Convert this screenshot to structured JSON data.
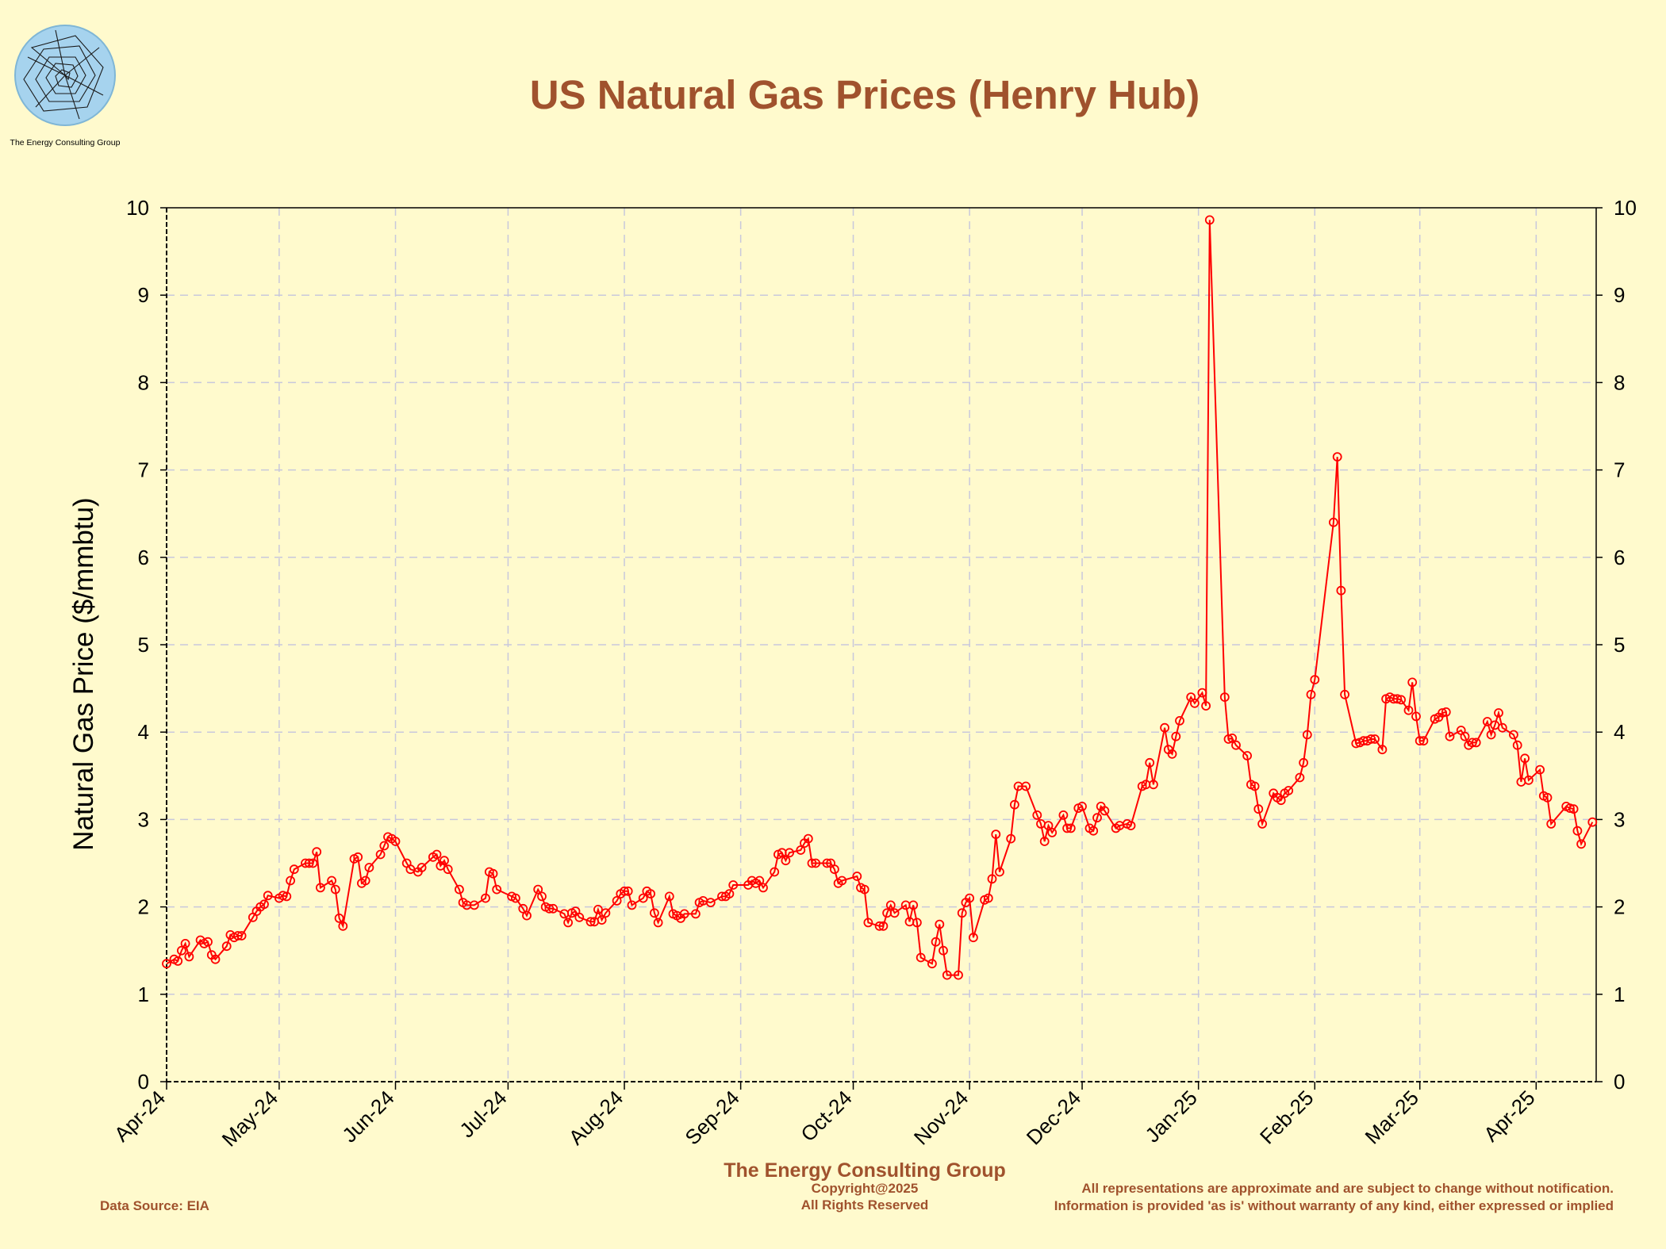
{
  "logo": {
    "text": "The Energy Consulting Group"
  },
  "footer": {
    "company": "The Energy Consulting Group",
    "copyright": "Copyright@2025",
    "rights": "All Rights Reserved",
    "source": "Data Source: EIA",
    "disclaimer_1": "All representations are approximate and are subject to change without notification.",
    "disclaimer_2": "Information is provided 'as is' without warranty of any kind, either expressed or implied"
  },
  "colors": {
    "background": "#fffacd",
    "accent": "#a0522d",
    "series": "#ff0000",
    "grid": "#c8c8dc"
  },
  "chart_data": {
    "type": "line",
    "title": "US Natural Gas Prices (Henry Hub)",
    "xlabel": "",
    "ylabel": "Natural Gas Price ($/mmbtu)",
    "ylim": [
      0,
      10
    ],
    "yticks": [
      0,
      1,
      2,
      3,
      4,
      5,
      6,
      7,
      8,
      9,
      10
    ],
    "xlim": [
      "2024-04-01",
      "2025-04-17"
    ],
    "xticks": [
      {
        "date": "2024-04-01",
        "label": "Apr-24"
      },
      {
        "date": "2024-05-01",
        "label": "May-24"
      },
      {
        "date": "2024-06-01",
        "label": "Jun-24"
      },
      {
        "date": "2024-07-01",
        "label": "Jul-24"
      },
      {
        "date": "2024-08-01",
        "label": "Aug-24"
      },
      {
        "date": "2024-09-01",
        "label": "Sep-24"
      },
      {
        "date": "2024-10-01",
        "label": "Oct-24"
      },
      {
        "date": "2024-11-01",
        "label": "Nov-24"
      },
      {
        "date": "2024-12-01",
        "label": "Dec-24"
      },
      {
        "date": "2025-01-01",
        "label": "Jan-25"
      },
      {
        "date": "2025-02-01",
        "label": "Feb-25"
      },
      {
        "date": "2025-03-01",
        "label": "Mar-25"
      },
      {
        "date": "2025-04-01",
        "label": "Apr-25"
      }
    ],
    "grid": true,
    "series": [
      {
        "marker": "circle",
        "points": [
          [
            "2024-04-01",
            1.35
          ],
          [
            "2024-04-03",
            1.4
          ],
          [
            "2024-04-04",
            1.38
          ],
          [
            "2024-04-05",
            1.5
          ],
          [
            "2024-04-06",
            1.58
          ],
          [
            "2024-04-07",
            1.43
          ],
          [
            "2024-04-10",
            1.62
          ],
          [
            "2024-04-11",
            1.58
          ],
          [
            "2024-04-12",
            1.6
          ],
          [
            "2024-04-13",
            1.45
          ],
          [
            "2024-04-14",
            1.4
          ],
          [
            "2024-04-17",
            1.55
          ],
          [
            "2024-04-18",
            1.68
          ],
          [
            "2024-04-19",
            1.65
          ],
          [
            "2024-04-20",
            1.67
          ],
          [
            "2024-04-21",
            1.67
          ],
          [
            "2024-04-24",
            1.88
          ],
          [
            "2024-04-25",
            1.95
          ],
          [
            "2024-04-26",
            2.0
          ],
          [
            "2024-04-27",
            2.03
          ],
          [
            "2024-04-28",
            2.13
          ],
          [
            "2024-05-01",
            2.1
          ],
          [
            "2024-05-02",
            2.13
          ],
          [
            "2024-05-03",
            2.12
          ],
          [
            "2024-05-04",
            2.3
          ],
          [
            "2024-05-05",
            2.43
          ],
          [
            "2024-05-08",
            2.5
          ],
          [
            "2024-05-09",
            2.5
          ],
          [
            "2024-05-10",
            2.5
          ],
          [
            "2024-05-11",
            2.63
          ],
          [
            "2024-05-12",
            2.22
          ],
          [
            "2024-05-15",
            2.3
          ],
          [
            "2024-05-16",
            2.2
          ],
          [
            "2024-05-17",
            1.87
          ],
          [
            "2024-05-18",
            1.78
          ],
          [
            "2024-05-21",
            2.55
          ],
          [
            "2024-05-22",
            2.57
          ],
          [
            "2024-05-23",
            2.27
          ],
          [
            "2024-05-24",
            2.3
          ],
          [
            "2024-05-25",
            2.45
          ],
          [
            "2024-05-28",
            2.6
          ],
          [
            "2024-05-29",
            2.7
          ],
          [
            "2024-05-30",
            2.8
          ],
          [
            "2024-05-31",
            2.78
          ],
          [
            "2024-06-01",
            2.75
          ],
          [
            "2024-06-04",
            2.5
          ],
          [
            "2024-06-05",
            2.43
          ],
          [
            "2024-06-07",
            2.4
          ],
          [
            "2024-06-08",
            2.45
          ],
          [
            "2024-06-11",
            2.57
          ],
          [
            "2024-06-12",
            2.6
          ],
          [
            "2024-06-13",
            2.47
          ],
          [
            "2024-06-14",
            2.53
          ],
          [
            "2024-06-15",
            2.43
          ],
          [
            "2024-06-18",
            2.2
          ],
          [
            "2024-06-19",
            2.05
          ],
          [
            "2024-06-20",
            2.02
          ],
          [
            "2024-06-22",
            2.02
          ],
          [
            "2024-06-25",
            2.1
          ],
          [
            "2024-06-26",
            2.4
          ],
          [
            "2024-06-27",
            2.38
          ],
          [
            "2024-06-28",
            2.2
          ],
          [
            "2024-07-02",
            2.12
          ],
          [
            "2024-07-03",
            2.1
          ],
          [
            "2024-07-05",
            1.98
          ],
          [
            "2024-07-06",
            1.9
          ],
          [
            "2024-07-09",
            2.2
          ],
          [
            "2024-07-10",
            2.12
          ],
          [
            "2024-07-11",
            2.0
          ],
          [
            "2024-07-12",
            1.98
          ],
          [
            "2024-07-13",
            1.98
          ],
          [
            "2024-07-16",
            1.92
          ],
          [
            "2024-07-17",
            1.82
          ],
          [
            "2024-07-18",
            1.93
          ],
          [
            "2024-07-19",
            1.95
          ],
          [
            "2024-07-20",
            1.88
          ],
          [
            "2024-07-23",
            1.83
          ],
          [
            "2024-07-24",
            1.83
          ],
          [
            "2024-07-25",
            1.97
          ],
          [
            "2024-07-26",
            1.85
          ],
          [
            "2024-07-27",
            1.93
          ],
          [
            "2024-07-30",
            2.07
          ],
          [
            "2024-07-31",
            2.15
          ],
          [
            "2024-08-01",
            2.18
          ],
          [
            "2024-08-02",
            2.18
          ],
          [
            "2024-08-03",
            2.02
          ],
          [
            "2024-08-06",
            2.1
          ],
          [
            "2024-08-07",
            2.18
          ],
          [
            "2024-08-08",
            2.15
          ],
          [
            "2024-08-09",
            1.93
          ],
          [
            "2024-08-10",
            1.82
          ],
          [
            "2024-08-13",
            2.12
          ],
          [
            "2024-08-14",
            1.92
          ],
          [
            "2024-08-15",
            1.9
          ],
          [
            "2024-08-16",
            1.87
          ],
          [
            "2024-08-17",
            1.92
          ],
          [
            "2024-08-20",
            1.92
          ],
          [
            "2024-08-21",
            2.05
          ],
          [
            "2024-08-22",
            2.07
          ],
          [
            "2024-08-24",
            2.05
          ],
          [
            "2024-08-27",
            2.12
          ],
          [
            "2024-08-28",
            2.12
          ],
          [
            "2024-08-29",
            2.15
          ],
          [
            "2024-08-30",
            2.25
          ],
          [
            "2024-09-03",
            2.25
          ],
          [
            "2024-09-04",
            2.3
          ],
          [
            "2024-09-05",
            2.27
          ],
          [
            "2024-09-06",
            2.3
          ],
          [
            "2024-09-07",
            2.22
          ],
          [
            "2024-09-10",
            2.4
          ],
          [
            "2024-09-11",
            2.6
          ],
          [
            "2024-09-12",
            2.62
          ],
          [
            "2024-09-13",
            2.53
          ],
          [
            "2024-09-14",
            2.62
          ],
          [
            "2024-09-17",
            2.65
          ],
          [
            "2024-09-18",
            2.73
          ],
          [
            "2024-09-19",
            2.78
          ],
          [
            "2024-09-20",
            2.5
          ],
          [
            "2024-09-21",
            2.5
          ],
          [
            "2024-09-24",
            2.5
          ],
          [
            "2024-09-25",
            2.5
          ],
          [
            "2024-09-26",
            2.43
          ],
          [
            "2024-09-27",
            2.27
          ],
          [
            "2024-09-28",
            2.3
          ],
          [
            "2024-10-02",
            2.35
          ],
          [
            "2024-10-03",
            2.22
          ],
          [
            "2024-10-04",
            2.2
          ],
          [
            "2024-10-05",
            1.82
          ],
          [
            "2024-10-08",
            1.78
          ],
          [
            "2024-10-09",
            1.78
          ],
          [
            "2024-10-10",
            1.93
          ],
          [
            "2024-10-11",
            2.02
          ],
          [
            "2024-10-12",
            1.93
          ],
          [
            "2024-10-15",
            2.02
          ],
          [
            "2024-10-16",
            1.83
          ],
          [
            "2024-10-17",
            2.02
          ],
          [
            "2024-10-18",
            1.82
          ],
          [
            "2024-10-19",
            1.42
          ],
          [
            "2024-10-22",
            1.35
          ],
          [
            "2024-10-23",
            1.6
          ],
          [
            "2024-10-24",
            1.8
          ],
          [
            "2024-10-25",
            1.5
          ],
          [
            "2024-10-26",
            1.22
          ],
          [
            "2024-10-29",
            1.22
          ],
          [
            "2024-10-30",
            1.93
          ],
          [
            "2024-10-31",
            2.05
          ],
          [
            "2024-11-01",
            2.1
          ],
          [
            "2024-11-02",
            1.65
          ],
          [
            "2024-11-05",
            2.08
          ],
          [
            "2024-11-06",
            2.1
          ],
          [
            "2024-11-07",
            2.32
          ],
          [
            "2024-11-08",
            2.83
          ],
          [
            "2024-11-09",
            2.4
          ],
          [
            "2024-11-12",
            2.78
          ],
          [
            "2024-11-13",
            3.17
          ],
          [
            "2024-11-14",
            3.38
          ],
          [
            "2024-11-16",
            3.38
          ],
          [
            "2024-11-19",
            3.05
          ],
          [
            "2024-11-20",
            2.95
          ],
          [
            "2024-11-21",
            2.75
          ],
          [
            "2024-11-22",
            2.93
          ],
          [
            "2024-11-23",
            2.85
          ],
          [
            "2024-11-26",
            3.05
          ],
          [
            "2024-11-27",
            2.9
          ],
          [
            "2024-11-28",
            2.9
          ],
          [
            "2024-11-30",
            3.13
          ],
          [
            "2024-12-01",
            3.15
          ],
          [
            "2024-12-03",
            2.9
          ],
          [
            "2024-12-04",
            2.87
          ],
          [
            "2024-12-05",
            3.02
          ],
          [
            "2024-12-06",
            3.15
          ],
          [
            "2024-12-07",
            3.1
          ],
          [
            "2024-12-10",
            2.9
          ],
          [
            "2024-12-11",
            2.93
          ],
          [
            "2024-12-13",
            2.95
          ],
          [
            "2024-12-14",
            2.93
          ],
          [
            "2024-12-17",
            3.38
          ],
          [
            "2024-12-18",
            3.4
          ],
          [
            "2024-12-19",
            3.65
          ],
          [
            "2024-12-20",
            3.4
          ],
          [
            "2024-12-23",
            4.05
          ],
          [
            "2024-12-24",
            3.8
          ],
          [
            "2024-12-25",
            3.75
          ],
          [
            "2024-12-26",
            3.95
          ],
          [
            "2024-12-27",
            4.13
          ],
          [
            "2024-12-30",
            4.4
          ],
          [
            "2024-12-31",
            4.33
          ],
          [
            "2025-01-02",
            4.45
          ],
          [
            "2025-01-03",
            4.3
          ],
          [
            "2025-01-04",
            9.86
          ],
          [
            "2025-01-08",
            4.4
          ],
          [
            "2025-01-09",
            3.92
          ],
          [
            "2025-01-10",
            3.93
          ],
          [
            "2025-01-11",
            3.85
          ],
          [
            "2025-01-14",
            3.73
          ],
          [
            "2025-01-15",
            3.4
          ],
          [
            "2025-01-16",
            3.38
          ],
          [
            "2025-01-17",
            3.12
          ],
          [
            "2025-01-18",
            2.95
          ],
          [
            "2025-01-21",
            3.3
          ],
          [
            "2025-01-22",
            3.25
          ],
          [
            "2025-01-23",
            3.22
          ],
          [
            "2025-01-24",
            3.3
          ],
          [
            "2025-01-25",
            3.33
          ],
          [
            "2025-01-28",
            3.48
          ],
          [
            "2025-01-29",
            3.65
          ],
          [
            "2025-01-30",
            3.97
          ],
          [
            "2025-01-31",
            4.43
          ],
          [
            "2025-02-01",
            4.6
          ],
          [
            "2025-02-06",
            6.4
          ],
          [
            "2025-02-07",
            7.15
          ],
          [
            "2025-02-08",
            5.62
          ],
          [
            "2025-02-09",
            4.43
          ],
          [
            "2025-02-12",
            3.87
          ],
          [
            "2025-02-13",
            3.88
          ],
          [
            "2025-02-14",
            3.9
          ],
          [
            "2025-02-15",
            3.9
          ],
          [
            "2025-02-16",
            3.92
          ],
          [
            "2025-02-17",
            3.92
          ],
          [
            "2025-02-19",
            3.8
          ],
          [
            "2025-02-20",
            4.38
          ],
          [
            "2025-02-21",
            4.4
          ],
          [
            "2025-02-22",
            4.38
          ],
          [
            "2025-02-23",
            4.38
          ],
          [
            "2025-02-24",
            4.37
          ],
          [
            "2025-02-26",
            4.25
          ],
          [
            "2025-02-27",
            4.57
          ],
          [
            "2025-02-28",
            4.18
          ],
          [
            "2025-03-01",
            3.9
          ],
          [
            "2025-03-02",
            3.9
          ],
          [
            "2025-03-05",
            4.15
          ],
          [
            "2025-03-06",
            4.17
          ],
          [
            "2025-03-07",
            4.22
          ],
          [
            "2025-03-08",
            4.23
          ],
          [
            "2025-03-09",
            3.95
          ],
          [
            "2025-03-12",
            4.02
          ],
          [
            "2025-03-13",
            3.95
          ],
          [
            "2025-03-14",
            3.85
          ],
          [
            "2025-03-15",
            3.88
          ],
          [
            "2025-03-16",
            3.88
          ],
          [
            "2025-03-19",
            4.12
          ],
          [
            "2025-03-20",
            3.97
          ],
          [
            "2025-03-21",
            4.08
          ],
          [
            "2025-03-22",
            4.22
          ],
          [
            "2025-03-23",
            4.05
          ],
          [
            "2025-03-26",
            3.97
          ],
          [
            "2025-03-27",
            3.85
          ],
          [
            "2025-03-28",
            3.43
          ],
          [
            "2025-03-29",
            3.7
          ],
          [
            "2025-03-30",
            3.45
          ],
          [
            "2025-04-02",
            3.57
          ],
          [
            "2025-04-03",
            3.27
          ],
          [
            "2025-04-04",
            3.25
          ],
          [
            "2025-04-05",
            2.95
          ],
          [
            "2025-04-09",
            3.15
          ],
          [
            "2025-04-10",
            3.13
          ],
          [
            "2025-04-11",
            3.12
          ],
          [
            "2025-04-12",
            2.87
          ],
          [
            "2025-04-13",
            2.72
          ],
          [
            "2025-04-16",
            2.97
          ]
        ]
      }
    ]
  }
}
